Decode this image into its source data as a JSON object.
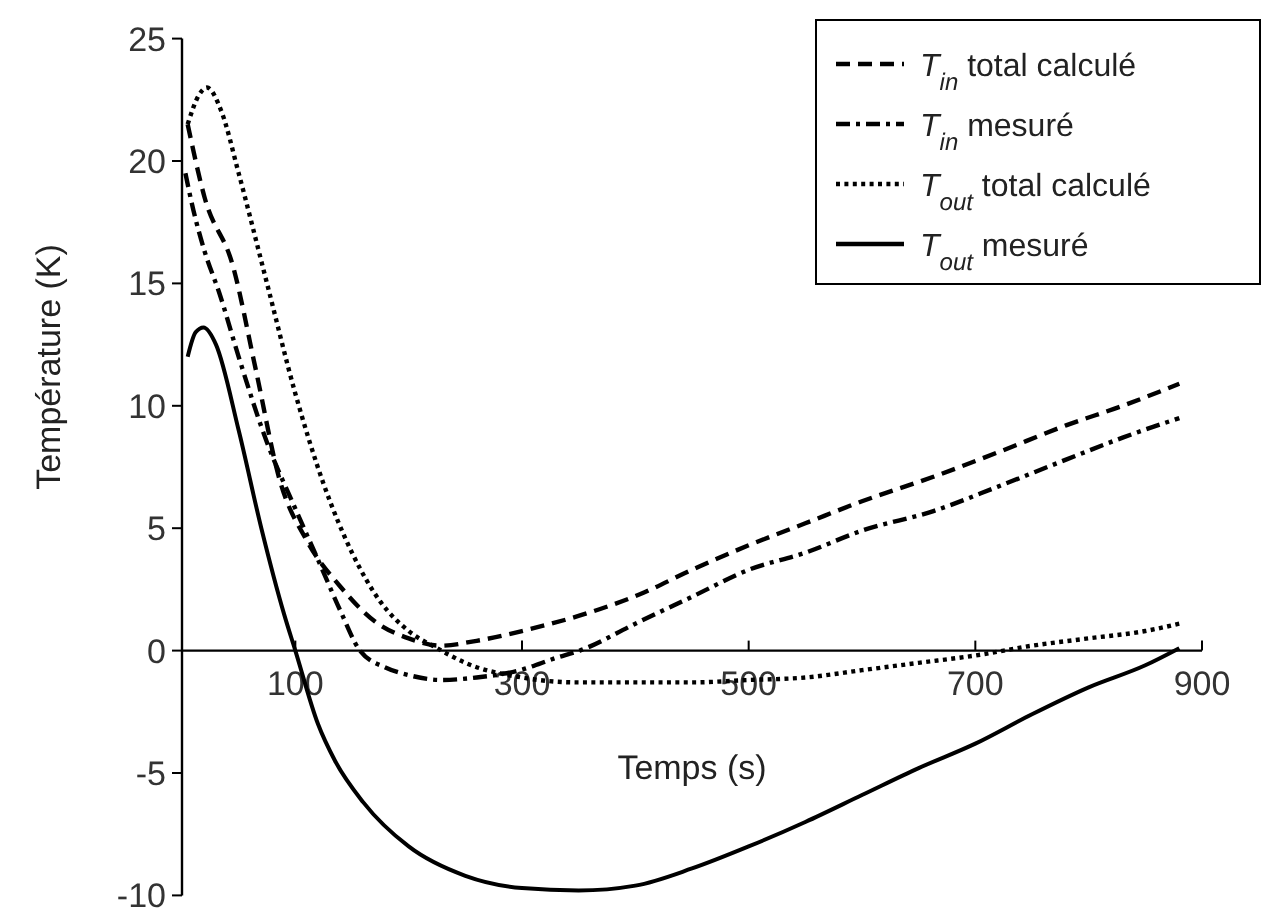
{
  "chart_data": {
    "type": "line",
    "xlabel": "Temps (s)",
    "ylabel": "Température (K)",
    "xlim": [
      0,
      900
    ],
    "xticks": [
      100,
      300,
      500,
      700,
      900
    ],
    "ylim": [
      -10,
      25
    ],
    "yticks": [
      -10,
      -5,
      0,
      5,
      10,
      15,
      20,
      25
    ],
    "grid": false,
    "legend": "top right",
    "series": [
      {
        "name": "T$_{in}$ total calculé",
        "color": "#000000",
        "line_style": "dashed",
        "x": [
          5,
          20,
          45,
          65,
          86,
          110,
          140,
          170,
          200,
          228,
          260,
          300,
          369,
          404,
          450,
          500,
          550,
          600,
          663,
          720,
          780,
          830,
          880
        ],
        "values": [
          21.5,
          18.5,
          15.7,
          11.5,
          7,
          4.5,
          2.6,
          1.2,
          0.5,
          0.2,
          0.4,
          0.8,
          1.7,
          2.3,
          3.3,
          4.3,
          5.2,
          6.1,
          7.1,
          8.1,
          9.2,
          10,
          10.9
        ]
      },
      {
        "name": "T$_{in}$ mesuré",
        "color": "#000000",
        "line_style": "dashdot",
        "x": [
          3,
          10,
          20,
          33,
          50,
          75,
          100,
          122,
          140,
          157,
          180,
          200,
          228,
          260,
          298,
          330,
          351,
          400,
          450,
          500,
          550,
          600,
          663,
          720,
          780,
          830,
          880
        ],
        "values": [
          19.5,
          18,
          16.3,
          14.6,
          12,
          8.5,
          5.8,
          3.5,
          1.6,
          0,
          -0.7,
          -1,
          -1.2,
          -1.1,
          -0.8,
          -0.3,
          0,
          1.1,
          2.2,
          3.3,
          4,
          4.9,
          5.7,
          6.7,
          7.8,
          8.7,
          9.5
        ]
      },
      {
        "name": "T$_{out}$ total calculé",
        "color": "#000000",
        "line_style": "dotted",
        "x": [
          5,
          15,
          22,
          35,
          50,
          75,
          100,
          125,
          150,
          175,
          200,
          225,
          250,
          300,
          350,
          400,
          450,
          500,
          550,
          600,
          650,
          700,
          750,
          800,
          850,
          880
        ],
        "values": [
          21.5,
          22.7,
          23,
          22,
          19.5,
          15,
          10.5,
          6.8,
          4,
          2,
          0.8,
          0.1,
          -0.5,
          -1.1,
          -1.3,
          -1.3,
          -1.3,
          -1.2,
          -1.1,
          -0.8,
          -0.5,
          -0.2,
          0.2,
          0.5,
          0.8,
          1.1
        ]
      },
      {
        "name": "T$_{out}$ mesuré",
        "color": "#000000",
        "line_style": "solid",
        "x": [
          5,
          12,
          19,
          30,
          50,
          70,
          90,
          100,
          120,
          135,
          160,
          200,
          250,
          300,
          350,
          400,
          450,
          500,
          550,
          600,
          650,
          700,
          750,
          800,
          850,
          880
        ],
        "values": [
          12,
          13,
          13.2,
          12.5,
          9,
          5,
          1.5,
          0,
          -3,
          -4.5,
          -6.2,
          -8,
          -9.2,
          -9.7,
          -9.8,
          -9.6,
          -8.9,
          -8,
          -7,
          -5.9,
          -4.8,
          -3.8,
          -2.6,
          -1.5,
          -0.6,
          0.1
        ]
      }
    ]
  }
}
